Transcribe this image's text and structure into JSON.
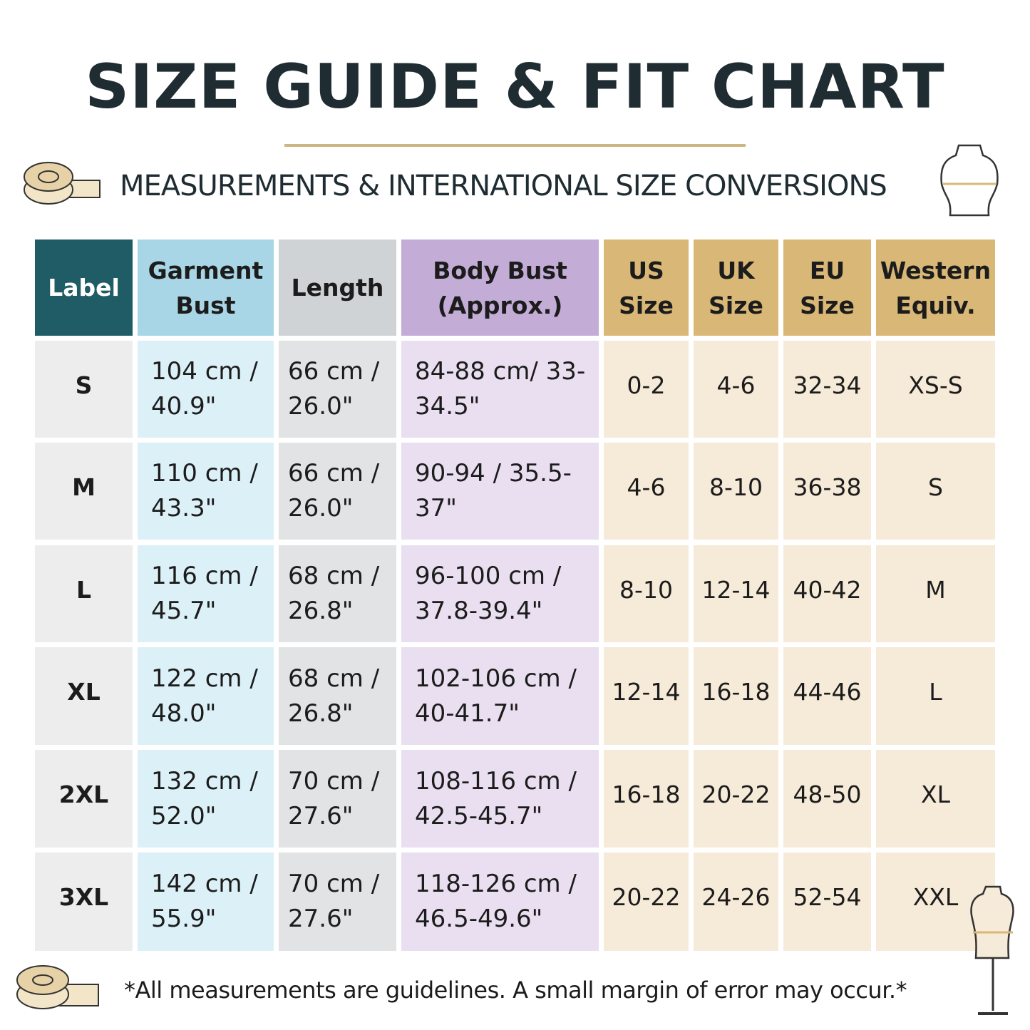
{
  "header": {
    "title": "SIZE GUIDE & FIT CHART",
    "subtitle": "MEASUREMENTS & INTERNATIONAL SIZE CONVERSIONS"
  },
  "table": {
    "columns": [
      "Label",
      "Garment Bust",
      "Length",
      "Body Bust (Approx.)",
      "US Size",
      "UK Size",
      "EU Size",
      "Western Equiv."
    ],
    "rows": [
      [
        "S",
        "104 cm / 40.9\"",
        "66 cm / 26.0\"",
        "84-88 cm/ 33-34.5\"",
        "0-2",
        "4-6",
        "32-34",
        "XS-S"
      ],
      [
        "M",
        "110 cm / 43.3\"",
        "66 cm / 26.0\"",
        "90-94 / 35.5-37\"",
        "4-6",
        "8-10",
        "36-38",
        "S"
      ],
      [
        "L",
        "116 cm / 45.7\"",
        "68 cm / 26.8\"",
        "96-100 cm / 37.8-39.4\"",
        "8-10",
        "12-14",
        "40-42",
        "M"
      ],
      [
        "XL",
        "122 cm / 48.0\"",
        "68 cm / 26.8\"",
        "102-106 cm / 40-41.7\"",
        "12-14",
        "16-18",
        "44-46",
        "L"
      ],
      [
        "2XL",
        "132 cm / 52.0\"",
        "70 cm / 27.6\"",
        "108-116 cm / 42.5-45.7\"",
        "16-18",
        "20-22",
        "48-50",
        "XL"
      ],
      [
        "3XL",
        "142 cm / 55.9\"",
        "70 cm / 27.6\"",
        "118-126 cm / 46.5-49.6\"",
        "20-22",
        "24-26",
        "52-54",
        "XXL"
      ]
    ]
  },
  "footnote": "*All measurements are guidelines. A small margin of error may occur.*"
}
